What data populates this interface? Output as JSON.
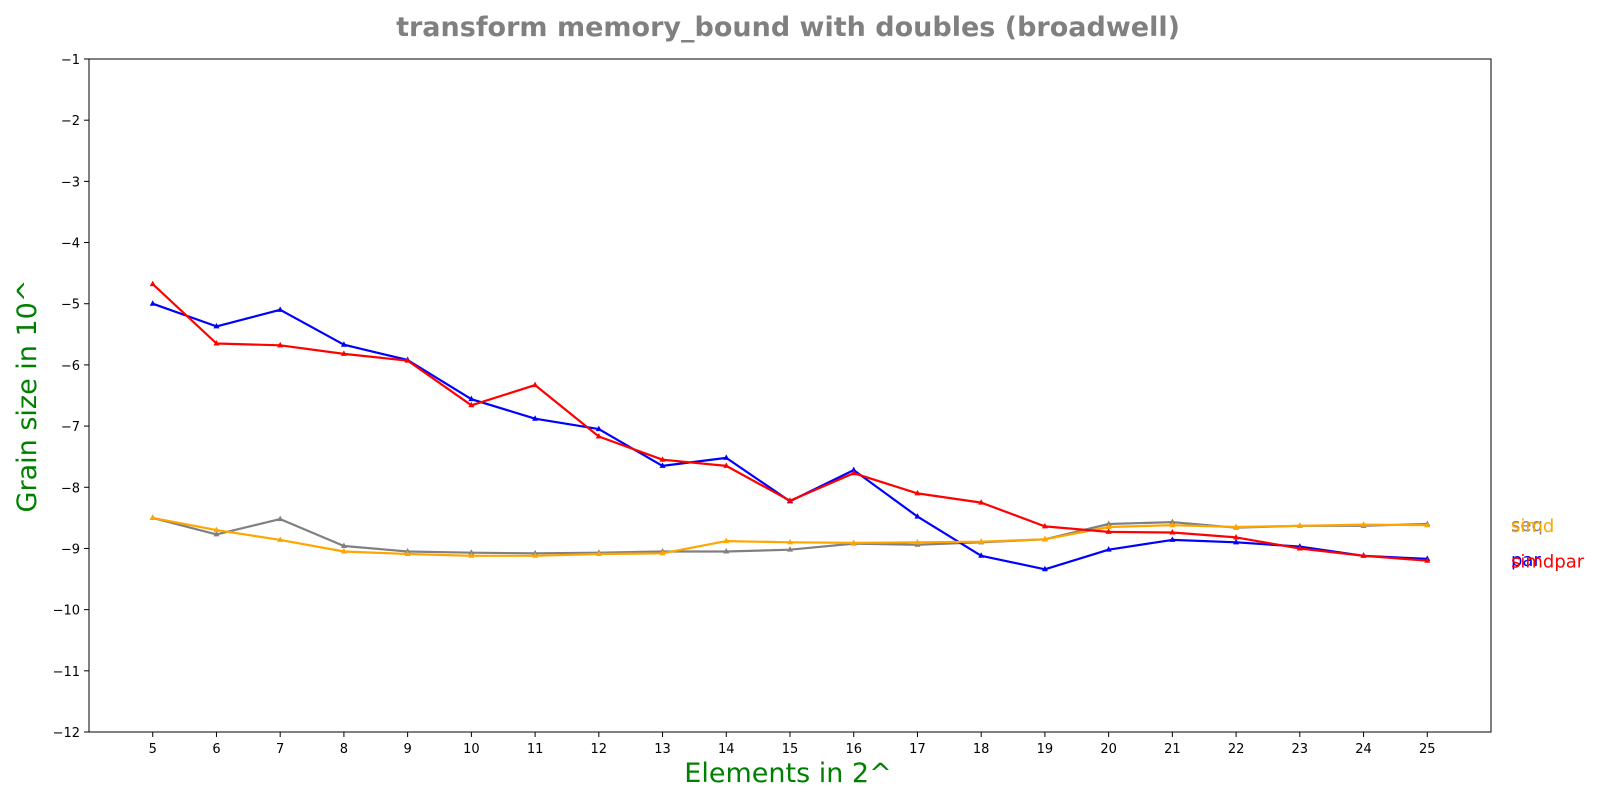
{
  "chart_data": {
    "type": "line",
    "title": "transform memory_bound with doubles  (broadwell)",
    "xlabel": "Elements in 2^",
    "ylabel": "Grain size in 10^",
    "x": [
      5,
      6,
      7,
      8,
      9,
      10,
      11,
      12,
      13,
      14,
      15,
      16,
      17,
      18,
      19,
      20,
      21,
      22,
      23,
      24,
      25
    ],
    "xlim": [
      4,
      26
    ],
    "ylim": [
      -12,
      -1
    ],
    "yticks": [
      -12,
      -11,
      -10,
      -9,
      -8,
      -7,
      -6,
      -5,
      -4,
      -3,
      -2,
      -1
    ],
    "ytick_labels": [
      "−12",
      "−11",
      "−10",
      "−9",
      "−8",
      "−7",
      "−6",
      "−5",
      "−4",
      "−3",
      "−2",
      "−1"
    ],
    "grid": false,
    "title_color": "#808080",
    "label_color": "#008000",
    "series": [
      {
        "name": "seq",
        "color": "#808080",
        "values": [
          -8.5,
          -8.77,
          -8.52,
          -8.96,
          -9.05,
          -9.07,
          -9.08,
          -9.07,
          -9.05,
          -9.05,
          -9.02,
          -8.92,
          -8.94,
          -8.9,
          -8.85,
          -8.6,
          -8.57,
          -8.66,
          -8.63,
          -8.63,
          -8.6
        ]
      },
      {
        "name": "par",
        "color": "#0000ff",
        "values": [
          -5.0,
          -5.37,
          -5.1,
          -5.67,
          -5.92,
          -6.56,
          -6.88,
          -7.05,
          -7.65,
          -7.52,
          -8.23,
          -7.72,
          -8.48,
          -9.12,
          -9.34,
          -9.02,
          -8.86,
          -8.9,
          -8.97,
          -9.12,
          -9.17
        ]
      },
      {
        "name": "simd",
        "color": "#ffa500",
        "values": [
          -8.5,
          -8.7,
          -8.86,
          -9.05,
          -9.09,
          -9.12,
          -9.12,
          -9.09,
          -9.08,
          -8.88,
          -8.9,
          -8.91,
          -8.9,
          -8.89,
          -8.85,
          -8.65,
          -8.62,
          -8.65,
          -8.63,
          -8.61,
          -8.62
        ]
      },
      {
        "name": "simdpar",
        "color": "#ff0000",
        "values": [
          -4.68,
          -5.65,
          -5.68,
          -5.82,
          -5.93,
          -6.66,
          -6.33,
          -7.17,
          -7.55,
          -7.65,
          -8.22,
          -7.77,
          -8.1,
          -8.25,
          -8.64,
          -8.73,
          -8.74,
          -8.82,
          -9.0,
          -9.12,
          -9.2
        ]
      }
    ]
  }
}
